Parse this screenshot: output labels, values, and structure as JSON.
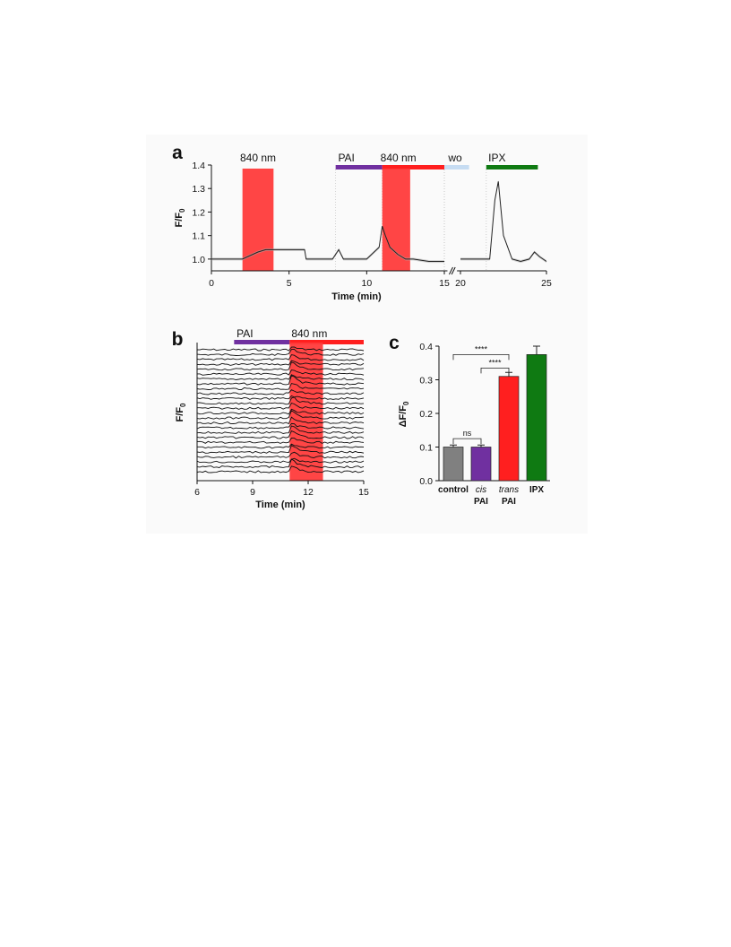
{
  "colors": {
    "pai": "#7030a0",
    "light": "#ff1f1f",
    "light_window": "#ff3b3b",
    "wo": "#c6dcf2",
    "ipx": "#0f7a12",
    "control": "#808080",
    "trace": "#222222"
  },
  "chart_data": [
    {
      "panel": "a",
      "type": "line",
      "ylabel": "F/F0",
      "xlabel": "Time (min)",
      "ylim": [
        0.95,
        1.4
      ],
      "yticks": [
        1.0,
        1.1,
        1.2,
        1.3,
        1.4
      ],
      "ytick_labels": [
        "1.0",
        "1.1",
        "1.2",
        "1.3",
        "1.4"
      ],
      "xticks": [
        0,
        5,
        10,
        15,
        20,
        25
      ],
      "xtick_labels": [
        "0",
        "5",
        "10",
        "15",
        "20",
        "25"
      ],
      "x_break": [
        15.5,
        19.5
      ],
      "treatments": [
        {
          "label": "840 nm",
          "start": 2,
          "end": 4,
          "style": "light-window"
        },
        {
          "label": "PAI",
          "start": 8,
          "end": 11,
          "style": "pai-bar"
        },
        {
          "label": "840 nm",
          "start": 11,
          "end": 15,
          "style": "light-bar"
        },
        {
          "label": "",
          "start": 11,
          "end": 12.8,
          "style": "light-window"
        },
        {
          "label": "wo",
          "start": 15,
          "end": 20.5,
          "style": "wo-bar"
        },
        {
          "label": "IPX",
          "start": 21.5,
          "end": 24.5,
          "style": "ipx-bar"
        }
      ],
      "segments": [
        {
          "x": [
            0,
            1,
            2,
            3,
            3.5,
            4,
            5,
            6,
            6.1,
            7,
            7.8,
            8.2,
            8.5,
            9,
            10,
            10.8,
            11,
            11.2,
            11.5,
            12,
            12.5,
            13,
            14,
            15
          ],
          "y": [
            1.0,
            1.0,
            1.0,
            1.03,
            1.04,
            1.04,
            1.04,
            1.04,
            1.0,
            1.0,
            1.0,
            1.04,
            1.0,
            1.0,
            1.0,
            1.05,
            1.14,
            1.1,
            1.05,
            1.02,
            1.0,
            1.0,
            0.99,
            0.99
          ]
        },
        {
          "x": [
            20,
            21,
            21.7,
            22,
            22.2,
            22.5,
            23,
            23.5,
            24,
            24.3,
            24.6,
            25
          ],
          "y": [
            1.0,
            1.0,
            1.0,
            1.25,
            1.33,
            1.1,
            1.0,
            0.99,
            1.0,
            1.03,
            1.01,
            0.99
          ]
        }
      ]
    },
    {
      "panel": "b",
      "type": "line",
      "ylabel": "F/F0",
      "xlabel": "Time (min)",
      "xlim": [
        6,
        15
      ],
      "xticks": [
        6,
        9,
        12,
        15
      ],
      "xtick_labels": [
        "6",
        "9",
        "12",
        "15"
      ],
      "treatments": [
        {
          "label": "PAI",
          "start": 8,
          "end": 11,
          "style": "pai-bar"
        },
        {
          "label": "840 nm",
          "start": 11,
          "end": 15,
          "style": "light-bar"
        },
        {
          "label": "",
          "start": 11,
          "end": 12.8,
          "style": "light-window"
        }
      ],
      "trace_count": 26,
      "trace_shape": {
        "response_peak_x": 11.2,
        "response_amplitude": 0.6
      }
    },
    {
      "panel": "c",
      "type": "bar",
      "ylabel": "ΔF/F0",
      "ylim": [
        0,
        0.4
      ],
      "yticks": [
        0.0,
        0.1,
        0.2,
        0.3,
        0.4
      ],
      "ytick_labels": [
        "0.0",
        "0.1",
        "0.2",
        "0.3",
        "0.4"
      ],
      "categories": [
        {
          "line1": "control",
          "line1_italic": false,
          "line2": ""
        },
        {
          "line1": "cis",
          "line1_italic": true,
          "line2": "PAI"
        },
        {
          "line1": "trans",
          "line1_italic": true,
          "line2": "PAI"
        },
        {
          "line1": "IPX",
          "line1_italic": false,
          "line2": ""
        }
      ],
      "values": [
        0.1,
        0.1,
        0.31,
        0.375
      ],
      "errors": [
        0.006,
        0.006,
        0.012,
        0.025
      ],
      "bar_colors": [
        "#808080",
        "#7030a0",
        "#ff1f1f",
        "#0f7a12"
      ],
      "significance": [
        {
          "from": 0,
          "to": 1,
          "label": "ns"
        },
        {
          "from": 1,
          "to": 2,
          "label": "****"
        },
        {
          "from": 0,
          "to": 2,
          "label": "****"
        }
      ]
    }
  ]
}
